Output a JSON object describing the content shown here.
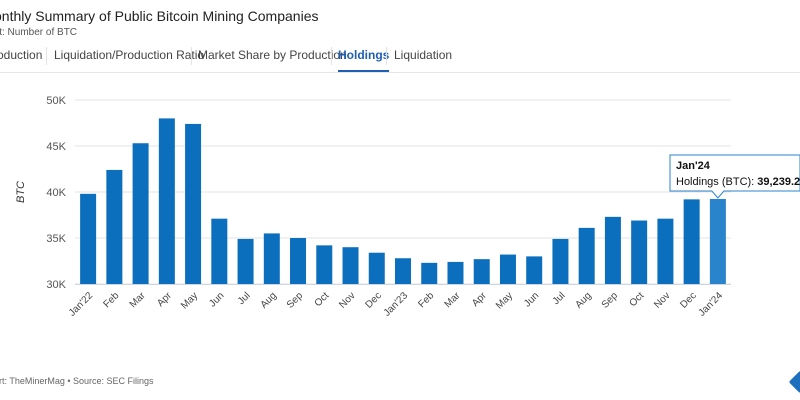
{
  "header": {
    "title": "onthly Summary of Public Bitcoin Mining Companies",
    "subtitle": "it: Number of BTC"
  },
  "tabs": [
    {
      "label": "oduction"
    },
    {
      "label": "Liquidation/Production Ratio"
    },
    {
      "label": "Market Share by Production"
    },
    {
      "label": "Holdings",
      "active": true
    },
    {
      "label": "Liquidation"
    }
  ],
  "footer": {
    "source": "art: TheMinerMag • Source: SEC Filings"
  },
  "tooltip": {
    "title": "Jan'24",
    "label": "Holdings (BTC): ",
    "value": "39,239.2"
  },
  "colors": {
    "bar": "#0b6fbd",
    "bar_highlight": "#2a84cc",
    "accent": "#1f5fb4",
    "grid": "#e3e3e3"
  },
  "chart_data": {
    "type": "bar",
    "ylabel": "BTC",
    "ylim": [
      30000,
      50000
    ],
    "yticks": [
      30000,
      35000,
      40000,
      45000,
      50000
    ],
    "ytick_labels": [
      "30K",
      "35K",
      "40K",
      "45K",
      "50K"
    ],
    "grid": true,
    "categories": [
      "Jan'22",
      "Feb",
      "Mar",
      "Apr",
      "May",
      "Jun",
      "Jul",
      "Aug",
      "Sep",
      "Oct",
      "Nov",
      "Dec",
      "Jan'23",
      "Feb",
      "Mar",
      "Apr",
      "May",
      "Jun",
      "Jul",
      "Aug",
      "Sep",
      "Oct",
      "Nov",
      "Dec",
      "Jan'24"
    ],
    "values": [
      39800,
      42400,
      45300,
      48000,
      47400,
      37100,
      34900,
      35500,
      35000,
      34200,
      34000,
      33400,
      32800,
      32300,
      32400,
      32700,
      33200,
      33000,
      34900,
      36100,
      37300,
      36900,
      37100,
      39200,
      39239.2
    ],
    "highlight_index": 24
  }
}
